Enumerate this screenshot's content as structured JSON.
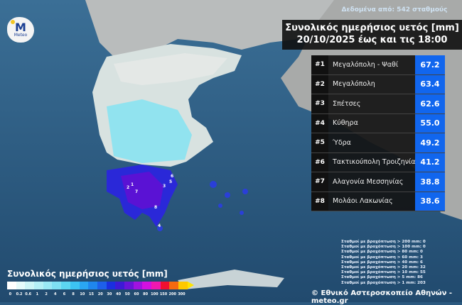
{
  "header": {
    "subtitle": "Δεδομένα από: 542 σταθμούς",
    "title_line1": "Συνολικός ημερήσιος υετός [mm]",
    "title_line2": "20/10/2025 έως και τις 18:00"
  },
  "logo": {
    "text": "Meteo",
    "mark": "M"
  },
  "ranking": [
    {
      "rank": "#1",
      "station": "Μεγαλόπολη - Ψαθί",
      "value": "67.2"
    },
    {
      "rank": "#2",
      "station": "Μεγαλόπολη",
      "value": "63.4"
    },
    {
      "rank": "#3",
      "station": "Σπέτσες",
      "value": "62.6"
    },
    {
      "rank": "#4",
      "station": "Κύθηρα",
      "value": "55.0"
    },
    {
      "rank": "#5",
      "station": "Ύδρα",
      "value": "49.2"
    },
    {
      "rank": "#6",
      "station": "Τακτικούπολη Τροιζηνίας",
      "value": "41.2"
    },
    {
      "rank": "#7",
      "station": "Αλαγονία Μεσσηνίας",
      "value": "38.8"
    },
    {
      "rank": "#8",
      "station": "Μολάοι Λακωνίας",
      "value": "38.6"
    }
  ],
  "stats": [
    "Σταθμοί με βροχόπτωση > 200 mm: 0",
    "Σταθμοί με βροχόπτωση > 100 mm: 0",
    "Σταθμοί με βροχόπτωση > 80 mm: 0",
    "Σταθμοί με βροχόπτωση > 60 mm: 3",
    "Σταθμοί με βροχόπτωση > 40 mm: 6",
    "Σταθμοί με βροχόπτωση > 20 mm: 32",
    "Σταθμοί με βροχόπτωση > 10 mm: 55",
    "Σταθμοί με βροχόπτωση > 5 mm: 86",
    "Σταθμοί με βροχόπτωση > 1 mm: 203"
  ],
  "legend": {
    "title": "Συνολικός ημερήσιος υετός [mm]",
    "ticks": [
      "0",
      "0.2",
      "0.6",
      "1",
      "2",
      "4",
      "6",
      "8",
      "10",
      "15",
      "20",
      "30",
      "40",
      "50",
      "60",
      "80",
      "100",
      "150",
      "200",
      "300"
    ],
    "colors": [
      "#ffffff",
      "#e6fbfb",
      "#cdf5f7",
      "#b4eff6",
      "#9ae8f5",
      "#7ee0f3",
      "#5cd6f2",
      "#3cc4f3",
      "#2aa6f2",
      "#1f86ee",
      "#1d5fea",
      "#1a2fe0",
      "#3d1ad6",
      "#6a14d8",
      "#a012e0",
      "#d410e0",
      "#f018b0",
      "#f01030",
      "#f56a10",
      "#ffc800"
    ]
  },
  "map_markers": [
    "1",
    "2",
    "3",
    "4",
    "5",
    "6",
    "7",
    "8"
  ],
  "credit": "© Εθνικό Αστεροσκοπείο Αθηνών - meteo.gr"
}
